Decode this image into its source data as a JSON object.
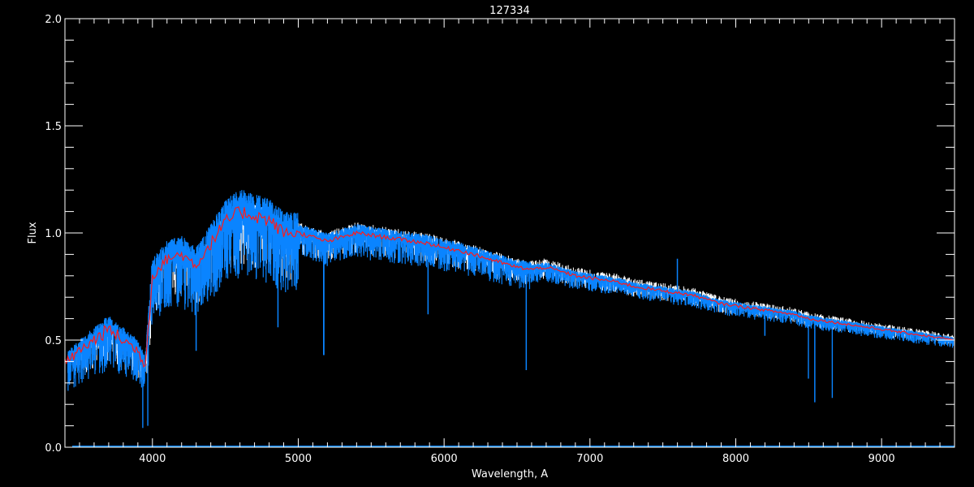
{
  "chart_data": {
    "type": "line",
    "title": "127334",
    "xlabel": "Wavelength, A",
    "ylabel": "Flux",
    "xlim": [
      3400,
      9500
    ],
    "ylim": [
      0.0,
      2.0
    ],
    "x_major_ticks": [
      4000,
      5000,
      6000,
      7000,
      8000,
      9000
    ],
    "x_tick_labels": [
      "4000",
      "5000",
      "6000",
      "7000",
      "8000",
      "9000"
    ],
    "x_minor_step": 100,
    "y_major_ticks": [
      0.0,
      0.5,
      1.0,
      1.5,
      2.0
    ],
    "y_tick_labels": [
      "0.0",
      "0.5",
      "1.0",
      "1.5",
      "2.0"
    ],
    "y_minor_step": 0.1,
    "grid": false,
    "colors": {
      "background": "#000000",
      "axes": "#ffffff",
      "observed": "#ffffff",
      "spectrum": "#0a84ff",
      "model": "#ff1a1a"
    },
    "continuum": {
      "x": [
        3400,
        3500,
        3600,
        3700,
        3800,
        3900,
        3950,
        4000,
        4100,
        4200,
        4300,
        4400,
        4500,
        4600,
        4700,
        4800,
        4900,
        5000,
        5100,
        5200,
        5300,
        5400,
        5500,
        5600,
        5700,
        5800,
        5900,
        6000,
        6100,
        6200,
        6300,
        6400,
        6500,
        6600,
        6700,
        6800,
        6900,
        7000,
        7100,
        7200,
        7300,
        7400,
        7500,
        7600,
        7700,
        7800,
        7900,
        8000,
        8100,
        8200,
        8300,
        8400,
        8500,
        8600,
        8700,
        8800,
        8900,
        9000,
        9100,
        9200,
        9300,
        9400,
        9500
      ],
      "y": [
        0.39,
        0.45,
        0.5,
        0.55,
        0.5,
        0.45,
        0.38,
        0.8,
        0.88,
        0.9,
        0.85,
        0.95,
        1.05,
        1.1,
        1.08,
        1.06,
        1.0,
        1.0,
        0.98,
        0.96,
        0.98,
        1.0,
        0.99,
        0.98,
        0.97,
        0.96,
        0.95,
        0.93,
        0.92,
        0.9,
        0.88,
        0.86,
        0.84,
        0.83,
        0.84,
        0.82,
        0.8,
        0.79,
        0.78,
        0.77,
        0.75,
        0.74,
        0.73,
        0.72,
        0.71,
        0.69,
        0.67,
        0.66,
        0.65,
        0.64,
        0.63,
        0.62,
        0.6,
        0.59,
        0.58,
        0.57,
        0.56,
        0.55,
        0.54,
        0.53,
        0.52,
        0.51,
        0.5
      ]
    },
    "strong_features": [
      {
        "x": 3934,
        "y": 0.09
      },
      {
        "x": 3968,
        "y": 0.1
      },
      {
        "x": 4300,
        "y": 0.45
      },
      {
        "x": 4861,
        "y": 0.56
      },
      {
        "x": 5175,
        "y": 0.43
      },
      {
        "x": 5890,
        "y": 0.62
      },
      {
        "x": 6563,
        "y": 0.36
      },
      {
        "x": 7600,
        "y": 0.88
      },
      {
        "x": 8200,
        "y": 0.52
      },
      {
        "x": 8498,
        "y": 0.32
      },
      {
        "x": 8542,
        "y": 0.21
      },
      {
        "x": 8662,
        "y": 0.23
      }
    ]
  }
}
